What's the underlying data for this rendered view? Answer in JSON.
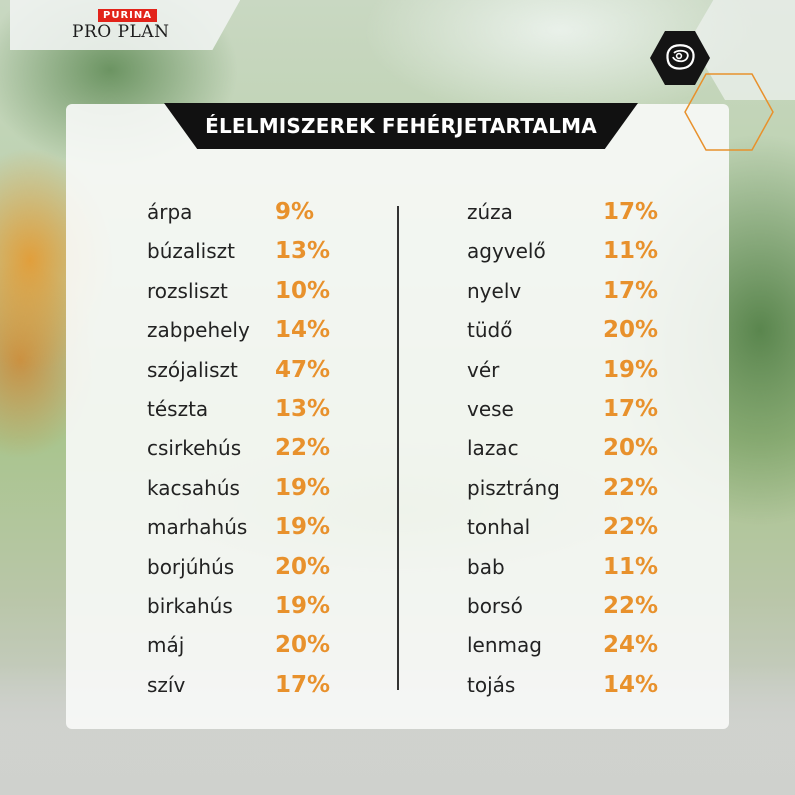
{
  "brand": {
    "purina": "PURINA",
    "proplan": "PRO PLAN"
  },
  "title": "ÉLELMISZEREK FEHÉRJETARTALMA",
  "icon": "meat-steak-icon",
  "colors": {
    "accent": "#e8912c",
    "banner": "#111111",
    "text": "#222222"
  },
  "left_items": [
    {
      "name": "árpa",
      "value": "9%"
    },
    {
      "name": "búzaliszt",
      "value": "13%"
    },
    {
      "name": "rozsliszt",
      "value": "10%"
    },
    {
      "name": "zabpehely",
      "value": "14%"
    },
    {
      "name": "szójaliszt",
      "value": "47%"
    },
    {
      "name": "tészta",
      "value": "13%"
    },
    {
      "name": "csirkehús",
      "value": "22%"
    },
    {
      "name": "kacsahús",
      "value": "19%"
    },
    {
      "name": "marhahús",
      "value": "19%"
    },
    {
      "name": "borjúhús",
      "value": "20%"
    },
    {
      "name": "birkahús",
      "value": "19%"
    },
    {
      "name": "máj",
      "value": "20%"
    },
    {
      "name": "szív",
      "value": "17%"
    }
  ],
  "right_items": [
    {
      "name": "zúza",
      "value": "17%"
    },
    {
      "name": "agyvelő",
      "value": "11%"
    },
    {
      "name": "nyelv",
      "value": "17%"
    },
    {
      "name": "tüdő",
      "value": "20%"
    },
    {
      "name": "vér",
      "value": "19%"
    },
    {
      "name": "vese",
      "value": "17%"
    },
    {
      "name": "lazac",
      "value": "20%"
    },
    {
      "name": "pisztráng",
      "value": "22%"
    },
    {
      "name": "tonhal",
      "value": "22%"
    },
    {
      "name": "bab",
      "value": "11%"
    },
    {
      "name": "borsó",
      "value": "22%"
    },
    {
      "name": "lenmag",
      "value": "24%"
    },
    {
      "name": "tojás",
      "value": "14%"
    }
  ]
}
